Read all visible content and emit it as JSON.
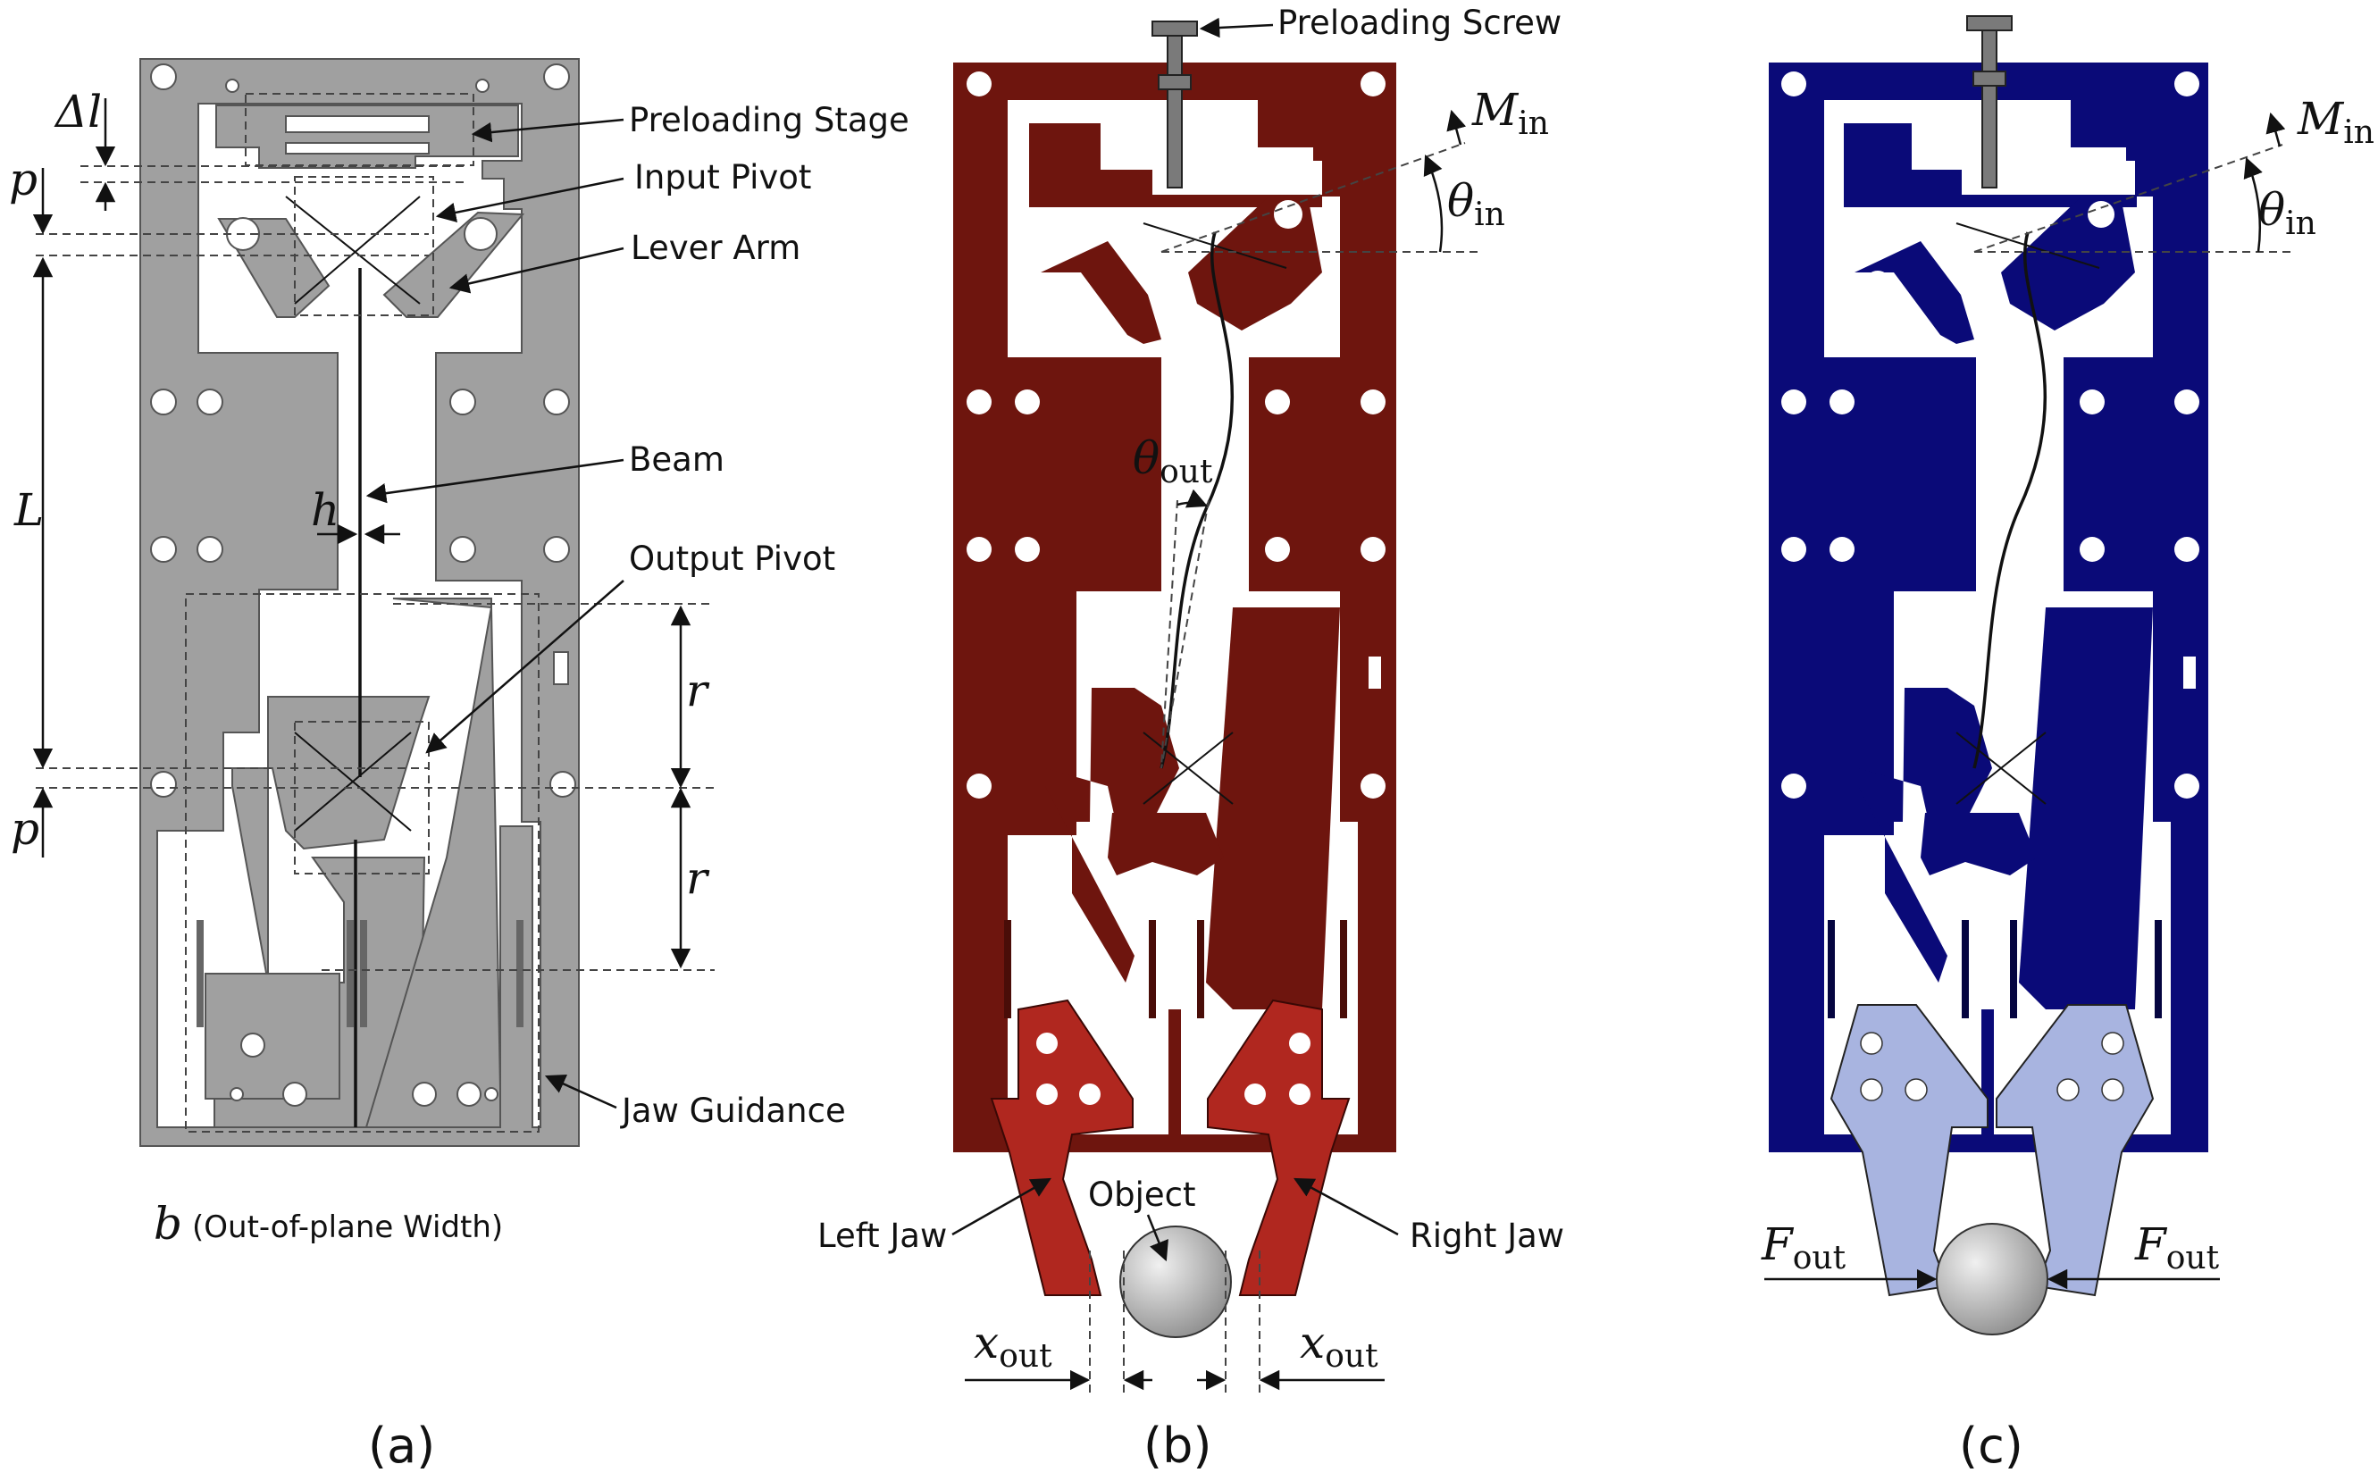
{
  "labels": {
    "preloading_stage": "Preloading Stage",
    "input_pivot": "Input Pivot",
    "lever_arm": "Lever Arm",
    "beam": "Beam",
    "output_pivot": "Output Pivot",
    "jaw_guidance": "Jaw Guidance",
    "out_of_plane": "(Out-of-plane Width)",
    "preloading_screw": "Preloading Screw",
    "object": "Object",
    "left_jaw": "Left Jaw",
    "right_jaw": "Right Jaw"
  },
  "symbols": {
    "delta_l": "Δl",
    "p": "p",
    "L": "L",
    "h": "h",
    "r": "r",
    "b": "b",
    "M": "M",
    "M_sub": "in",
    "theta": "θ",
    "theta_in_sub": "in",
    "theta_out_sub": "out",
    "x": "x",
    "x_sub": "out",
    "F": "F",
    "F_sub": "out"
  },
  "captions": {
    "a": "(a)",
    "b": "(b)",
    "c": "(c)"
  },
  "colors": {
    "panel_a_fill": "#a0a0a0",
    "panel_b_fill": "#6e150e",
    "panel_b_jaw": "#b0271f",
    "panel_c_fill": "#0a0a78",
    "panel_c_jaw": "#a8b4e0",
    "screw": "#7a7a7a",
    "object_light": "#f0f0f0",
    "object_dark": "#8a8a8a"
  }
}
